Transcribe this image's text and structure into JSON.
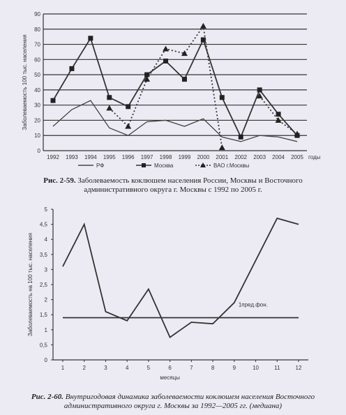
{
  "chart_data": [
    {
      "type": "line",
      "ylabel": "Заболеваемость 100 тыс. населения",
      "xlabel_suffix": "годы",
      "ylim": [
        0,
        90
      ],
      "yticks": [
        0,
        10,
        20,
        30,
        40,
        50,
        60,
        70,
        80,
        90
      ],
      "x": [
        "1992",
        "1993",
        "1994",
        "1995",
        "1996",
        "1997",
        "1998",
        "1999",
        "2000",
        "2001",
        "2002",
        "2003",
        "2004",
        "2005"
      ],
      "grid": true,
      "series": [
        {
          "name": "РФ",
          "marker": "none",
          "style": "solid",
          "color": "#444444",
          "values": [
            16,
            27,
            33,
            15,
            10,
            19,
            20,
            16,
            21,
            9,
            6,
            10,
            9,
            6
          ]
        },
        {
          "name": "Москва",
          "marker": "square",
          "style": "solid",
          "color": "#333333",
          "values": [
            33,
            54,
            74,
            35,
            29,
            50,
            59,
            47,
            73,
            35,
            9,
            40,
            24,
            10
          ]
        },
        {
          "name": "ВАО г.Москвы",
          "marker": "triangle",
          "style": "dotted",
          "color": "#333333",
          "values": [
            null,
            null,
            null,
            28,
            16,
            47,
            67,
            64,
            82,
            2,
            null,
            36,
            20,
            11
          ]
        }
      ],
      "caption_label": "Рис. 2-59.",
      "caption_text": "Заболеваемость коклюшем населения России, Москвы и Восточного административного округа г. Москвы с 1992 по 2005 г."
    },
    {
      "type": "line",
      "ylabel": "Заболеваемость на 100 тыс. населения",
      "xlabel": "месяцы",
      "ylim": [
        0,
        5
      ],
      "yticks": [
        "0",
        "0,5",
        "1",
        "1,5",
        "2",
        "2,5",
        "3",
        "3,5",
        "4",
        "4,5",
        "5"
      ],
      "x": [
        "1",
        "2",
        "3",
        "4",
        "5",
        "6",
        "7",
        "8",
        "9",
        "10",
        "11",
        "12"
      ],
      "grid": false,
      "series": [
        {
          "name": "median",
          "values": [
            3.1,
            4.5,
            1.6,
            1.3,
            2.35,
            0.75,
            1.25,
            1.2,
            1.9,
            3.3,
            4.7,
            4.5
          ]
        }
      ],
      "threshold": {
        "label": "1пред.фон.",
        "value": 1.4
      },
      "caption_label": "Рис. 2-60.",
      "caption_text": "Внутригодовая динамика заболеваемости коклюшем населения Восточного административного округа г. Москвы за 1992—2005 гг. (медиана)"
    }
  ]
}
